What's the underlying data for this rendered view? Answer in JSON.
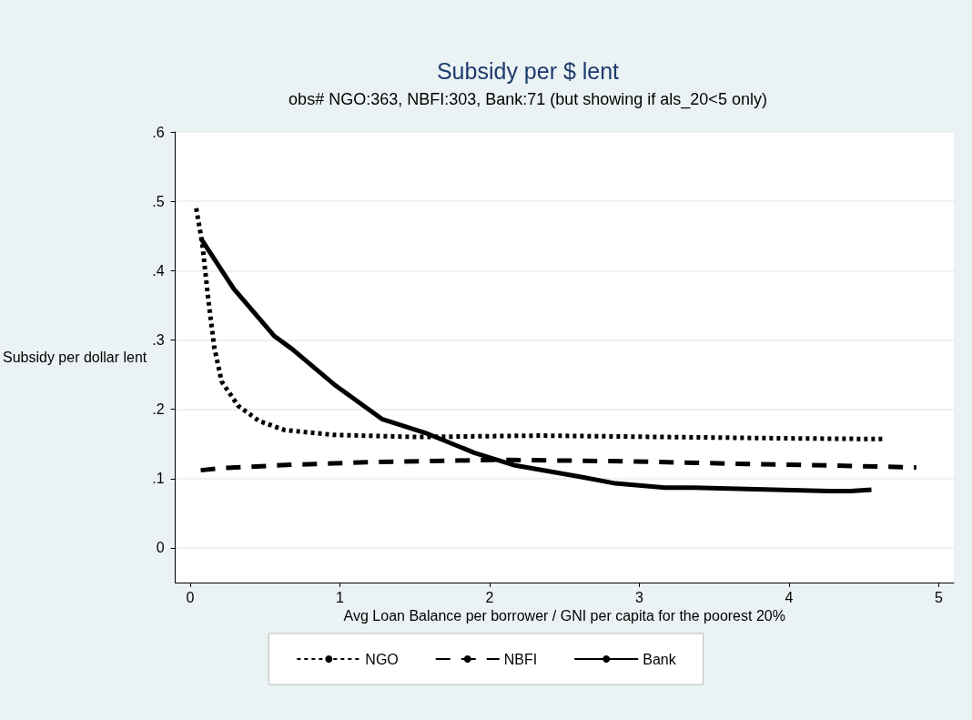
{
  "chart_data": {
    "type": "line",
    "title": "Subsidy per $ lent",
    "subtitle": "obs# NGO:363, NBFI:303, Bank:71 (but showing if als_20<5 only)",
    "xlabel": "Avg Loan Balance per borrower / GNI per capita for the poorest 20%",
    "ylabel": "Subsidy per dollar lent",
    "xlim": [
      -0.1,
      5.1
    ],
    "xticks": [
      0,
      1,
      2,
      3,
      4,
      5
    ],
    "ylim": [
      -0.05,
      0.6
    ],
    "yticks": [
      {
        "value": 0,
        "label": "0"
      },
      {
        "value": 0.1,
        "label": ".1"
      },
      {
        "value": 0.2,
        "label": ".2"
      },
      {
        "value": 0.3,
        "label": ".3"
      },
      {
        "value": 0.4,
        "label": ".4"
      },
      {
        "value": 0.5,
        "label": ".5"
      },
      {
        "value": 0.6,
        "label": ".6"
      }
    ],
    "grid": "y",
    "legend": "bottom",
    "marker": "none",
    "series": [
      {
        "name": "NGO",
        "color": "#000000",
        "line_style": "dotted",
        "x": [
          0.04,
          0.08,
          0.12,
          0.16,
          0.21,
          0.32,
          0.46,
          0.63,
          0.96,
          1.51,
          2.34,
          3.17,
          4.0,
          4.63
        ],
        "values": [
          0.49,
          0.44,
          0.36,
          0.29,
          0.24,
          0.205,
          0.183,
          0.17,
          0.163,
          0.16,
          0.162,
          0.16,
          0.158,
          0.157
        ]
      },
      {
        "name": "NBFI",
        "color": "#000000",
        "line_style": "dashed",
        "x": [
          0.07,
          0.21,
          0.68,
          1.24,
          2.06,
          2.89,
          3.72,
          4.27,
          4.85
        ],
        "values": [
          0.112,
          0.115,
          0.12,
          0.124,
          0.127,
          0.125,
          0.121,
          0.119,
          0.116
        ]
      },
      {
        "name": "Bank",
        "color": "#000000",
        "line_style": "solid",
        "x": [
          0.07,
          0.29,
          0.56,
          0.68,
          0.96,
          1.28,
          1.57,
          1.9,
          2.17,
          2.62,
          2.84,
          3.17,
          3.36,
          3.72,
          4.27,
          4.41,
          4.55
        ],
        "values": [
          0.447,
          0.374,
          0.306,
          0.287,
          0.236,
          0.186,
          0.166,
          0.137,
          0.119,
          0.102,
          0.093,
          0.087,
          0.087,
          0.085,
          0.082,
          0.082,
          0.084
        ]
      }
    ]
  }
}
